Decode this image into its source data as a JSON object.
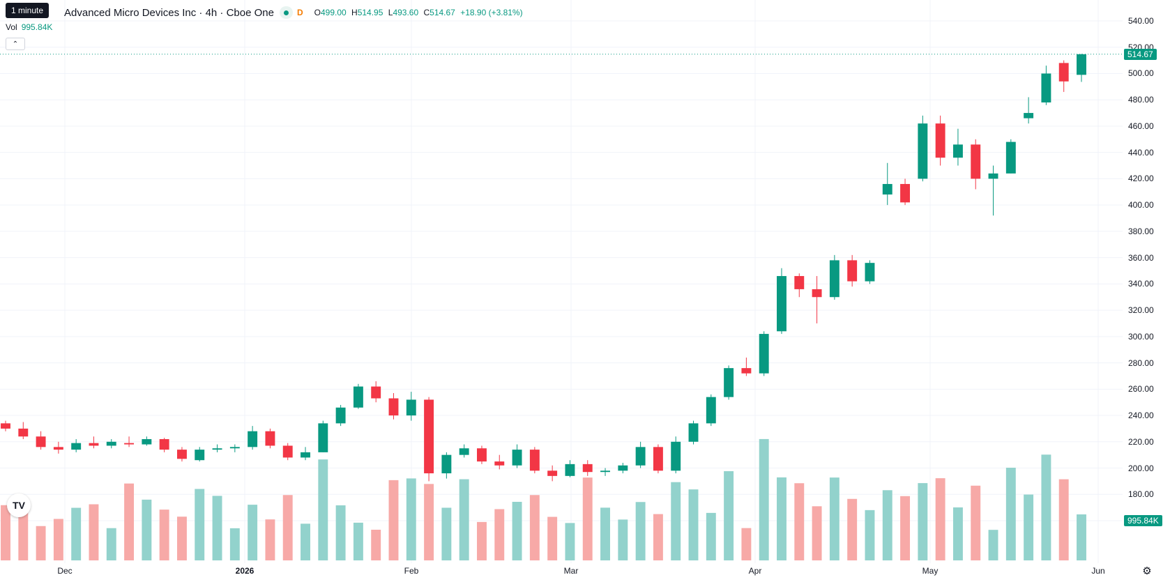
{
  "tooltip": "1 minute",
  "header": {
    "title": "Advanced Micro Devices Inc · 4h · Cboe One",
    "data_type_badge": "D",
    "ohlc": {
      "o_label": "O",
      "o": "499.00",
      "h_label": "H",
      "h": "514.95",
      "l_label": "L",
      "l": "493.60",
      "c_label": "C",
      "c": "514.67",
      "change": "+18.90 (+3.81%)"
    },
    "vol_label": "Vol",
    "vol_value": "995.84K"
  },
  "price_axis": {
    "labels": [
      "540.00",
      "520.00",
      "500.00",
      "480.00",
      "460.00",
      "440.00",
      "420.00",
      "400.00",
      "380.00",
      "360.00",
      "340.00",
      "320.00",
      "300.00",
      "280.00",
      "260.00",
      "240.00",
      "220.00",
      "200.00",
      "180.00",
      "160.00"
    ],
    "last_price_tag": "514.67",
    "last_volume_tag": "995.84K"
  },
  "time_axis": {
    "labels": [
      "Dec",
      "2026",
      "Feb",
      "Mar",
      "Apr",
      "May",
      "Jun"
    ]
  },
  "colors": {
    "up": "#089981",
    "down": "#f23645",
    "up_volume": "#92d2cc",
    "down_volume": "#f7a9a7",
    "grid": "#f0f3fa"
  },
  "icons": {
    "logo": "tradingview-logo-icon",
    "settings": "gear-icon",
    "collapse": "chevron-up-icon"
  },
  "chart_data": {
    "type": "candlestick",
    "ylim": [
      160,
      540
    ],
    "series": [
      {
        "name": "AMD",
        "points": [
          {
            "x": "Nov 21",
            "o": 234,
            "h": 236,
            "l": 228,
            "c": 230
          },
          {
            "x": "Nov 24",
            "o": 230,
            "h": 235,
            "l": 222,
            "c": 224
          },
          {
            "x": "Nov 25",
            "o": 224,
            "h": 228,
            "l": 214,
            "c": 216
          },
          {
            "x": "Nov 26",
            "o": 216,
            "h": 220,
            "l": 211,
            "c": 214
          },
          {
            "x": "Nov 28",
            "o": 214,
            "h": 222,
            "l": 212,
            "c": 219
          },
          {
            "x": "Dec 1",
            "o": 219,
            "h": 224,
            "l": 215,
            "c": 217
          },
          {
            "x": "Dec 2",
            "o": 217,
            "h": 222,
            "l": 215,
            "c": 220
          },
          {
            "x": "Dec 4",
            "o": 219,
            "h": 224,
            "l": 216,
            "c": 218
          },
          {
            "x": "Dec 9",
            "o": 218,
            "h": 224,
            "l": 217,
            "c": 222
          },
          {
            "x": "Dec 12",
            "o": 222,
            "h": 223,
            "l": 212,
            "c": 214
          },
          {
            "x": "Dec 16",
            "o": 214,
            "h": 216,
            "l": 205,
            "c": 207
          },
          {
            "x": "Dec 19",
            "o": 206,
            "h": 216,
            "l": 205,
            "c": 214
          },
          {
            "x": "Dec 23",
            "o": 214,
            "h": 218,
            "l": 212,
            "c": 215
          },
          {
            "x": "Dec 29",
            "o": 215,
            "h": 218,
            "l": 212,
            "c": 216
          },
          {
            "x": "Jan 2",
            "o": 216,
            "h": 232,
            "l": 214,
            "c": 228
          },
          {
            "x": "Jan 6",
            "o": 228,
            "h": 230,
            "l": 215,
            "c": 217
          },
          {
            "x": "Jan 9",
            "o": 217,
            "h": 219,
            "l": 206,
            "c": 208
          },
          {
            "x": "Jan 13",
            "o": 208,
            "h": 216,
            "l": 206,
            "c": 212
          },
          {
            "x": "Jan 15",
            "o": 212,
            "h": 236,
            "l": 212,
            "c": 234
          },
          {
            "x": "Jan 20",
            "o": 234,
            "h": 248,
            "l": 232,
            "c": 246
          },
          {
            "x": "Jan 22",
            "o": 246,
            "h": 264,
            "l": 245,
            "c": 262
          },
          {
            "x": "Jan 26",
            "o": 262,
            "h": 266,
            "l": 250,
            "c": 253
          },
          {
            "x": "Jan 29",
            "o": 253,
            "h": 257,
            "l": 237,
            "c": 240
          },
          {
            "x": "Feb 2",
            "o": 240,
            "h": 258,
            "l": 236,
            "c": 252
          },
          {
            "x": "Feb 3",
            "o": 252,
            "h": 254,
            "l": 190,
            "c": 196
          },
          {
            "x": "Feb 5",
            "o": 196,
            "h": 212,
            "l": 192,
            "c": 210
          },
          {
            "x": "Feb 9",
            "o": 210,
            "h": 218,
            "l": 208,
            "c": 215
          },
          {
            "x": "Feb 12",
            "o": 215,
            "h": 217,
            "l": 203,
            "c": 205
          },
          {
            "x": "Feb 17",
            "o": 205,
            "h": 210,
            "l": 199,
            "c": 202
          },
          {
            "x": "Feb 24",
            "o": 202,
            "h": 218,
            "l": 200,
            "c": 214
          },
          {
            "x": "Feb 26",
            "o": 214,
            "h": 216,
            "l": 196,
            "c": 198
          },
          {
            "x": "Mar 3",
            "o": 198,
            "h": 202,
            "l": 190,
            "c": 194
          },
          {
            "x": "Mar 6",
            "o": 194,
            "h": 206,
            "l": 193,
            "c": 203
          },
          {
            "x": "Mar 11",
            "o": 203,
            "h": 206,
            "l": 194,
            "c": 197
          },
          {
            "x": "Mar 16",
            "o": 197,
            "h": 200,
            "l": 194,
            "c": 198
          },
          {
            "x": "Mar 20",
            "o": 198,
            "h": 204,
            "l": 196,
            "c": 202
          },
          {
            "x": "Mar 24",
            "o": 202,
            "h": 220,
            "l": 200,
            "c": 216
          },
          {
            "x": "Mar 26",
            "o": 216,
            "h": 218,
            "l": 196,
            "c": 198
          },
          {
            "x": "Mar 31",
            "o": 198,
            "h": 224,
            "l": 196,
            "c": 220
          },
          {
            "x": "Apr 6",
            "o": 220,
            "h": 236,
            "l": 218,
            "c": 234
          },
          {
            "x": "Apr 10",
            "o": 234,
            "h": 256,
            "l": 232,
            "c": 254
          },
          {
            "x": "Apr 14",
            "o": 254,
            "h": 278,
            "l": 252,
            "c": 276
          },
          {
            "x": "Apr 17",
            "o": 276,
            "h": 284,
            "l": 270,
            "c": 272
          },
          {
            "x": "Apr 20",
            "o": 272,
            "h": 304,
            "l": 270,
            "c": 302
          },
          {
            "x": "Apr 23",
            "o": 304,
            "h": 352,
            "l": 302,
            "c": 346
          },
          {
            "x": "Apr 24",
            "o": 346,
            "h": 348,
            "l": 330,
            "c": 336
          },
          {
            "x": "Apr 28",
            "o": 336,
            "h": 346,
            "l": 310,
            "c": 330
          },
          {
            "x": "May 1",
            "o": 330,
            "h": 362,
            "l": 328,
            "c": 358
          },
          {
            "x": "May 4",
            "o": 358,
            "h": 362,
            "l": 338,
            "c": 342
          },
          {
            "x": "May 5",
            "o": 342,
            "h": 358,
            "l": 340,
            "c": 356
          },
          {
            "x": "May 6",
            "o": 408,
            "h": 432,
            "l": 400,
            "c": 416
          },
          {
            "x": "May 8",
            "o": 416,
            "h": 420,
            "l": 400,
            "c": 402
          },
          {
            "x": "May 11",
            "o": 420,
            "h": 468,
            "l": 418,
            "c": 462
          },
          {
            "x": "May 13",
            "o": 462,
            "h": 468,
            "l": 430,
            "c": 436
          },
          {
            "x": "May 15",
            "o": 436,
            "h": 458,
            "l": 430,
            "c": 446
          },
          {
            "x": "May 18",
            "o": 446,
            "h": 450,
            "l": 412,
            "c": 420
          },
          {
            "x": "May 20",
            "o": 420,
            "h": 430,
            "l": 392,
            "c": 424
          },
          {
            "x": "May 22",
            "o": 424,
            "h": 450,
            "l": 424,
            "c": 448
          },
          {
            "x": "May 26",
            "o": 466,
            "h": 482,
            "l": 462,
            "c": 470
          },
          {
            "x": "May 27",
            "o": 478,
            "h": 506,
            "l": 476,
            "c": 500
          },
          {
            "x": "May 28",
            "o": 508,
            "h": 510,
            "l": 486,
            "c": 494
          },
          {
            "x": "May 29",
            "o": 499,
            "h": 514.95,
            "l": 493.6,
            "c": 514.67
          }
        ]
      }
    ]
  }
}
